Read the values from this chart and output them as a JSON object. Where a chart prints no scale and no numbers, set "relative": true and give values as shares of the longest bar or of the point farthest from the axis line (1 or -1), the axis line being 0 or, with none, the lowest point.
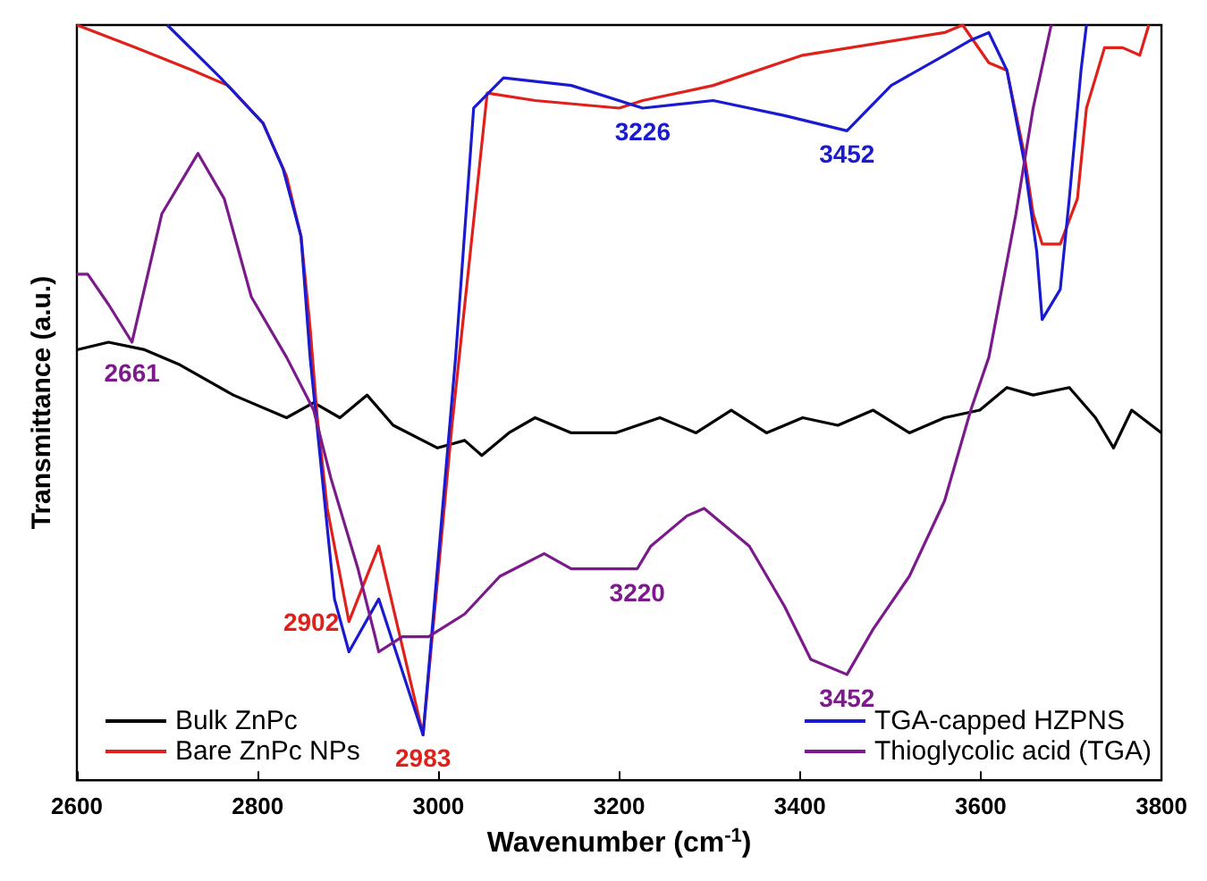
{
  "chart_data": {
    "type": "line",
    "xlabel": "Wavenumber (cm$^{-1}$)",
    "ylabel": "Transmittance (a.u.)",
    "relative": true,
    "xlim": [
      2600,
      3800
    ],
    "xticks": [
      2600,
      2800,
      3000,
      3200,
      3400,
      3600,
      3800
    ],
    "grid": false,
    "legend": "bottom",
    "marker": "none",
    "line_style": "solid",
    "series": [
      {
        "name": "Bulk ZnPc",
        "color": "#000000",
        "x": [
          2600,
          2635,
          2675,
          2714,
          2773,
          2832,
          2862,
          2891,
          2921,
          2950,
          2999,
          3029,
          3048,
          3078,
          3107,
          3147,
          3196,
          3245,
          3285,
          3324,
          3363,
          3403,
          3442,
          3481,
          3521,
          3560,
          3599,
          3629,
          3658,
          3698,
          3727,
          3747,
          3767,
          3800
        ],
        "values": [
          0.57,
          0.58,
          0.57,
          0.55,
          0.51,
          0.48,
          0.5,
          0.48,
          0.51,
          0.47,
          0.44,
          0.45,
          0.43,
          0.46,
          0.48,
          0.46,
          0.46,
          0.48,
          0.46,
          0.49,
          0.46,
          0.48,
          0.47,
          0.49,
          0.46,
          0.48,
          0.49,
          0.52,
          0.51,
          0.52,
          0.48,
          0.44,
          0.49,
          0.46
        ]
      },
      {
        "name": "Bare ZnPc NPs",
        "color": "#e0201b",
        "x": [
          2600,
          2665,
          2728,
          2767,
          2806,
          2832,
          2848,
          2858,
          2866,
          2877,
          2901,
          2934,
          2983,
          3015,
          3054,
          3107,
          3200,
          3226,
          3304,
          3403,
          3560,
          3580,
          3609,
          3629,
          3648,
          3658,
          3668,
          3688,
          3707,
          3717,
          3737,
          3757,
          3776,
          3786
        ],
        "values": [
          1,
          0.97,
          0.94,
          0.92,
          0.87,
          0.8,
          0.72,
          0.6,
          0.48,
          0.36,
          0.21,
          0.31,
          0.06,
          0.47,
          0.91,
          0.9,
          0.89,
          0.9,
          0.92,
          0.96,
          0.99,
          1,
          0.95,
          0.94,
          0.83,
          0.75,
          0.71,
          0.71,
          0.77,
          0.89,
          0.97,
          0.97,
          0.96,
          1
        ]
      },
      {
        "name": "TGA-capped HZPNS",
        "color": "#1a1ad0",
        "x": [
          2700,
          2759,
          2806,
          2828,
          2848,
          2858,
          2885,
          2901,
          2934,
          2983,
          3019,
          3039,
          3072,
          3147,
          3226,
          3304,
          3383,
          3452,
          3501,
          3560,
          3589,
          3609,
          3629,
          3648,
          3662,
          3668,
          3688,
          3698,
          3711,
          3717
        ],
        "values": [
          1,
          0.93,
          0.87,
          0.81,
          0.72,
          0.56,
          0.24,
          0.17,
          0.24,
          0.06,
          0.56,
          0.89,
          0.93,
          0.92,
          0.89,
          0.9,
          0.88,
          0.86,
          0.92,
          0.96,
          0.98,
          0.99,
          0.94,
          0.82,
          0.7,
          0.61,
          0.65,
          0.77,
          0.94,
          1
        ]
      },
      {
        "name": "Thioglycolic acid (TGA)",
        "color": "#7b1a8a",
        "x": [
          2600,
          2612,
          2635,
          2661,
          2694,
          2734,
          2763,
          2793,
          2832,
          2862,
          2881,
          2911,
          2930,
          2934,
          2960,
          2989,
          3029,
          3068,
          3117,
          3147,
          3220,
          3235,
          3275,
          3294,
          3344,
          3383,
          3412,
          3452,
          3481,
          3521,
          3560,
          3589,
          3609,
          3639,
          3658,
          3678
        ],
        "values": [
          0.67,
          0.67,
          0.63,
          0.58,
          0.75,
          0.83,
          0.77,
          0.64,
          0.56,
          0.49,
          0.4,
          0.28,
          0.19,
          0.17,
          0.19,
          0.19,
          0.22,
          0.27,
          0.3,
          0.28,
          0.28,
          0.31,
          0.35,
          0.36,
          0.31,
          0.23,
          0.16,
          0.14,
          0.2,
          0.27,
          0.37,
          0.49,
          0.56,
          0.75,
          0.89,
          1
        ]
      }
    ],
    "annotations": [
      {
        "text": "2661",
        "x": 2661,
        "y": 0.57
      },
      {
        "text": "2902",
        "x": 2902,
        "y": 0.21
      },
      {
        "text": "2983",
        "x": 2983,
        "y": 0.06
      },
      {
        "text": "3220",
        "x": 3220,
        "y": 0.28
      },
      {
        "text": "3452",
        "x": 3452,
        "y": 0.14
      },
      {
        "text": "3226",
        "x": 3226,
        "y": 0.89
      },
      {
        "text": "3452",
        "x": 3452,
        "y": 0.86
      }
    ]
  }
}
